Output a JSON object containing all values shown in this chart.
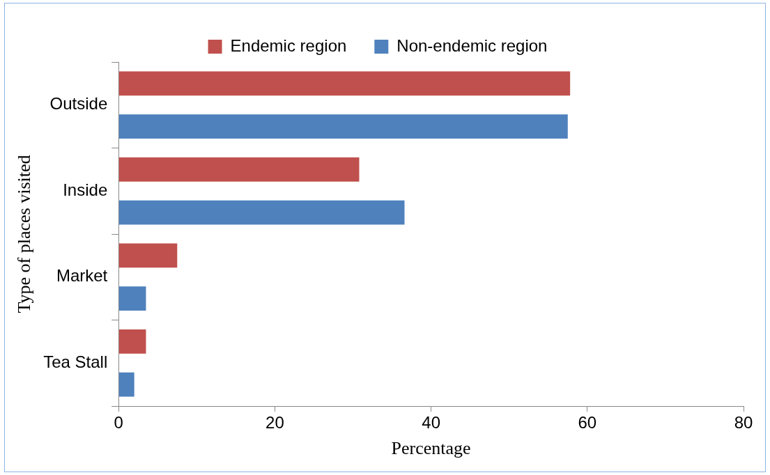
{
  "chart_data": {
    "type": "bar",
    "orientation": "horizontal",
    "xlabel": "Percentage",
    "ylabel": "Type of places visited",
    "categories": [
      "Outside",
      "Inside",
      "Market",
      "Tea Stall"
    ],
    "series": [
      {
        "name": "Endemic region",
        "color": "#c0504d",
        "values": [
          57.8,
          30.8,
          7.5,
          3.5
        ]
      },
      {
        "name": "Non-endemic region",
        "color": "#4f81bd",
        "values": [
          57.5,
          36.6,
          3.5,
          2.0
        ]
      }
    ],
    "xlim": [
      0,
      80
    ],
    "xticks": [
      0,
      20,
      40,
      60,
      80
    ],
    "grid": false,
    "legend": "top"
  }
}
